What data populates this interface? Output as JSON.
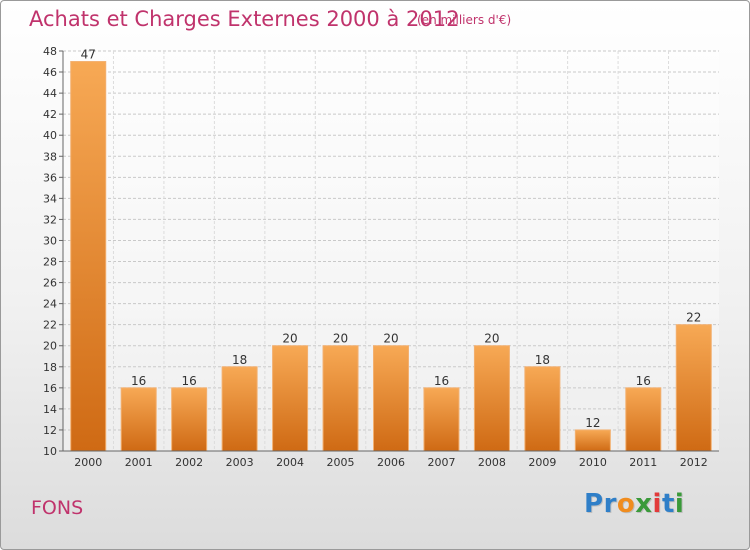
{
  "chart_data": {
    "type": "bar",
    "title": "Achats et Charges Externes 2000 à 2012",
    "subtitle": "(en milliers d'€)",
    "categories": [
      "2000",
      "2001",
      "2002",
      "2003",
      "2004",
      "2005",
      "2006",
      "2007",
      "2008",
      "2009",
      "2010",
      "2011",
      "2012"
    ],
    "values": [
      47,
      16,
      16,
      18,
      20,
      20,
      20,
      16,
      20,
      18,
      12,
      16,
      22
    ],
    "ylim": [
      10,
      48
    ],
    "yticks": [
      10,
      12,
      14,
      16,
      18,
      20,
      22,
      24,
      26,
      28,
      30,
      32,
      34,
      36,
      38,
      40,
      42,
      44,
      46,
      48
    ],
    "grid": true,
    "bar_color": "#f0963c"
  },
  "footer": {
    "commune": "FONS",
    "logo_letters": [
      {
        "char": "P",
        "color": "#2f7fc8"
      },
      {
        "char": "r",
        "color": "#2f7fc8"
      },
      {
        "char": "o",
        "color": "#f08c1e"
      },
      {
        "char": "x",
        "color": "#3a9a3a"
      },
      {
        "char": "i",
        "color": "#e23a3a"
      },
      {
        "char": "t",
        "color": "#2f7fc8"
      },
      {
        "char": "i",
        "color": "#3a9a3a"
      }
    ]
  }
}
